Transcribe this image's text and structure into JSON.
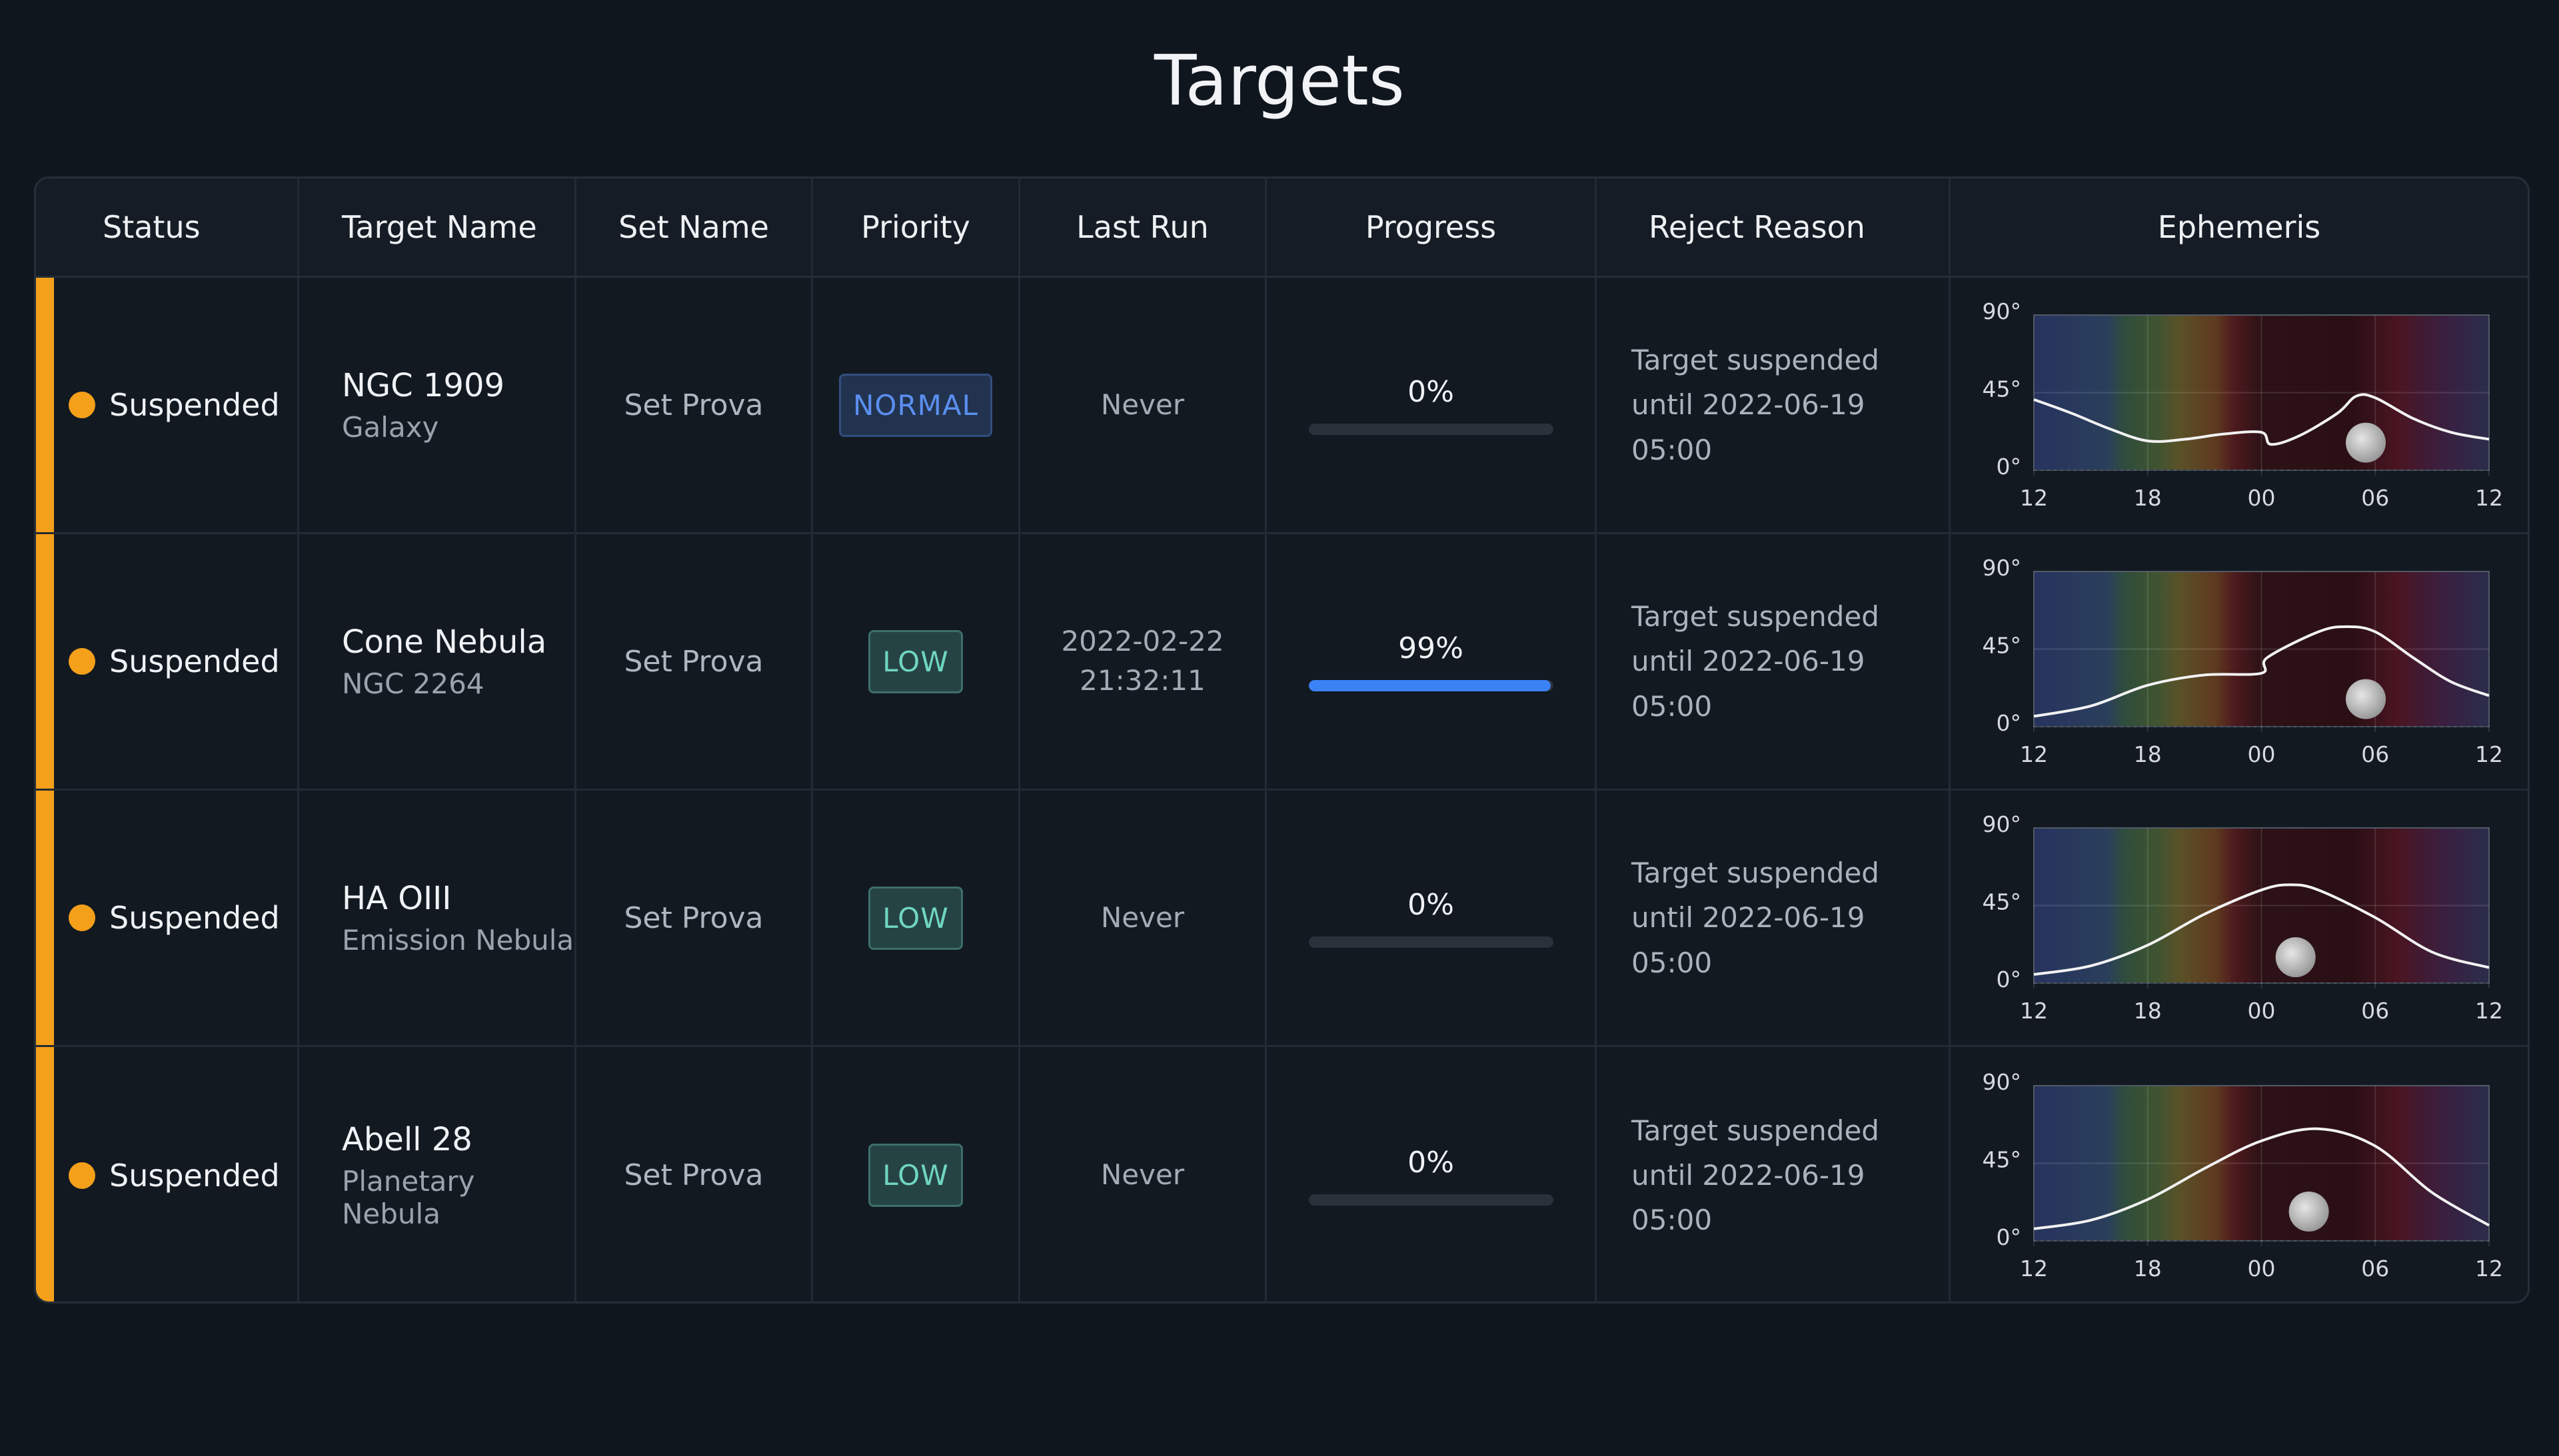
{
  "title": "Targets",
  "table": {
    "columns": [
      "Status",
      "Target Name",
      "Set Name",
      "Priority",
      "Last Run",
      "Progress",
      "Reject Reason",
      "Ephemeris"
    ],
    "status_color": "#f5a01a",
    "progress_range": [
      0,
      100
    ],
    "progress_color": "#3b82f6",
    "rows": [
      {
        "status": "Suspended",
        "target_name": "NGC 1909",
        "target_type": "Galaxy",
        "set_name": "Set Prova",
        "priority": "NORMAL",
        "priority_color": "#5b8ff0",
        "last_run": "Never",
        "progress": 0,
        "progress_label": "0%",
        "reject_reason": "Target suspended until 2022-06-19 05:00",
        "ephemeris": {
          "x": [
            12,
            14,
            16,
            18,
            20,
            22,
            24,
            24.5,
            26,
            28,
            29,
            30,
            32,
            34,
            36
          ],
          "values": [
            41,
            33,
            24,
            17,
            18,
            21,
            22,
            15,
            20,
            33,
            43,
            42,
            30,
            22,
            18
          ],
          "moon_x": 29.5,
          "moon_alt": 16
        }
      },
      {
        "status": "Suspended",
        "target_name": "Cone Nebula",
        "target_type": "NGC 2264",
        "set_name": "Set Prova",
        "priority": "LOW",
        "priority_color": "#6fd6c0",
        "last_run": "2022-02-22 21:32:11",
        "progress": 99,
        "progress_label": "99%",
        "reject_reason": "Target suspended until 2022-06-19 05:00",
        "ephemeris": {
          "x": [
            12,
            15,
            18,
            21,
            24,
            24.3,
            27,
            28.5,
            30,
            32,
            34,
            36
          ],
          "values": [
            6,
            12,
            24,
            30,
            31,
            40,
            55,
            58,
            55,
            40,
            26,
            18
          ],
          "moon_x": 29.5,
          "moon_alt": 16
        }
      },
      {
        "status": "Suspended",
        "target_name": "HA OIII",
        "target_type": "Emission Nebula",
        "set_name": "Set Prova",
        "priority": "LOW",
        "priority_color": "#6fd6c0",
        "last_run": "Never",
        "progress": 0,
        "progress_label": "0%",
        "reject_reason": "Target suspended until 2022-06-19 05:00",
        "ephemeris": {
          "x": [
            12,
            15,
            18,
            21,
            24,
            25.5,
            27,
            30,
            33,
            36
          ],
          "values": [
            5,
            10,
            22,
            40,
            54,
            57,
            54,
            38,
            18,
            9
          ],
          "moon_x": 25.8,
          "moon_alt": 15
        }
      },
      {
        "status": "Suspended",
        "target_name": "Abell 28",
        "target_type": "Planetary Nebula",
        "set_name": "Set Prova",
        "priority": "LOW",
        "priority_color": "#6fd6c0",
        "last_run": "Never",
        "progress": 0,
        "progress_label": "0%",
        "reject_reason": "Target suspended until 2022-06-19 05:00",
        "ephemeris": {
          "x": [
            12,
            15,
            18,
            21,
            24,
            27,
            30,
            33,
            36
          ],
          "values": [
            7,
            12,
            24,
            42,
            58,
            65,
            55,
            28,
            9
          ],
          "moon_x": 26.5,
          "moon_alt": 17
        }
      }
    ]
  },
  "ephemeris_axes": {
    "xlim": [
      12,
      36
    ],
    "xticks": [
      12,
      18,
      {
        "value": 24,
        "label": "00"
      },
      {
        "value": 30,
        "label": "06"
      },
      {
        "value": 36,
        "label": "12"
      }
    ],
    "ylim": [
      0,
      90
    ],
    "yticks": [
      {
        "value": 0,
        "label": "0°"
      },
      {
        "value": 45,
        "label": "45°"
      },
      {
        "value": 90,
        "label": "90°"
      }
    ],
    "line_color": "#f2f2f2"
  }
}
